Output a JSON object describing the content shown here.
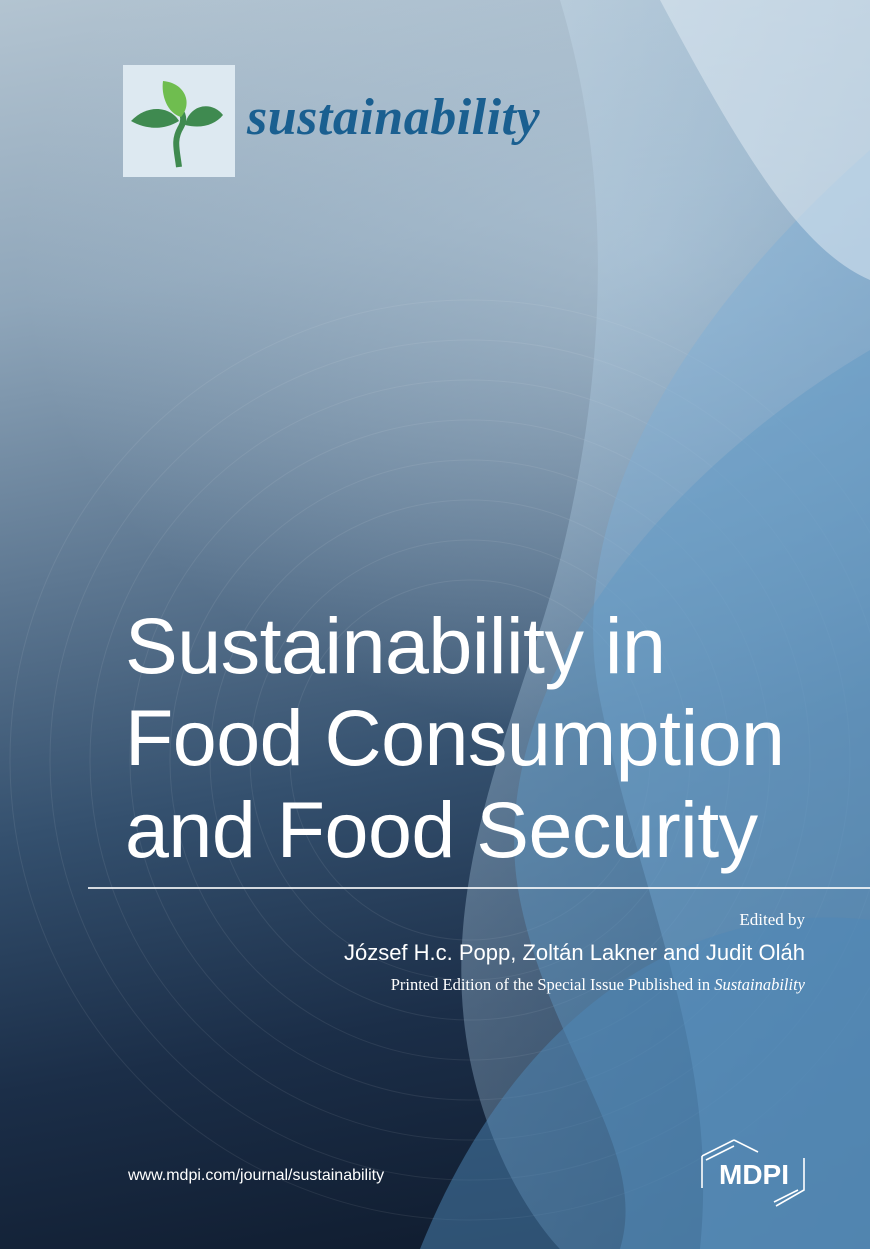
{
  "journal": {
    "name": "sustainability",
    "logo_icon": "sprout-leaves-icon",
    "brand_color": "#1a5f90"
  },
  "title": {
    "lines": [
      "Sustainability in",
      "Food Consumption",
      "and Food Security"
    ]
  },
  "credits": {
    "edited_by": "Edited by",
    "authors": "József H.c. Popp, Zoltán Lakner and Judit Oláh",
    "printed_prefix": "Printed Edition of the Special Issue Published in",
    "printed_journal": "Sustainability"
  },
  "footer": {
    "url": "www.mdpi.com/journal/sustainability",
    "publisher": "MDPI"
  }
}
